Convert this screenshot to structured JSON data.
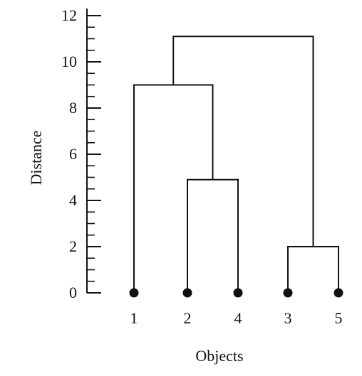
{
  "chart_data": {
    "type": "dendrogram",
    "title": "",
    "xlabel": "Objects",
    "ylabel": "Distance",
    "ylim": [
      0,
      12
    ],
    "y_ticks": [
      "0",
      "2",
      "4",
      "6",
      "8",
      "10",
      "12"
    ],
    "y_minor_step": 0.5,
    "leaves": [
      "1",
      "2",
      "4",
      "3",
      "5"
    ],
    "merges": [
      {
        "id": "c24",
        "left": "2",
        "right": "4",
        "height": 4.9
      },
      {
        "id": "c35",
        "left": "3",
        "right": "5",
        "height": 2.0
      },
      {
        "id": "c124",
        "left": "1",
        "right": "c24",
        "height": 9.0
      },
      {
        "id": "root",
        "left": "c124",
        "right": "c35",
        "height": 11.1
      }
    ],
    "grid": false,
    "line_color": "#111111"
  }
}
